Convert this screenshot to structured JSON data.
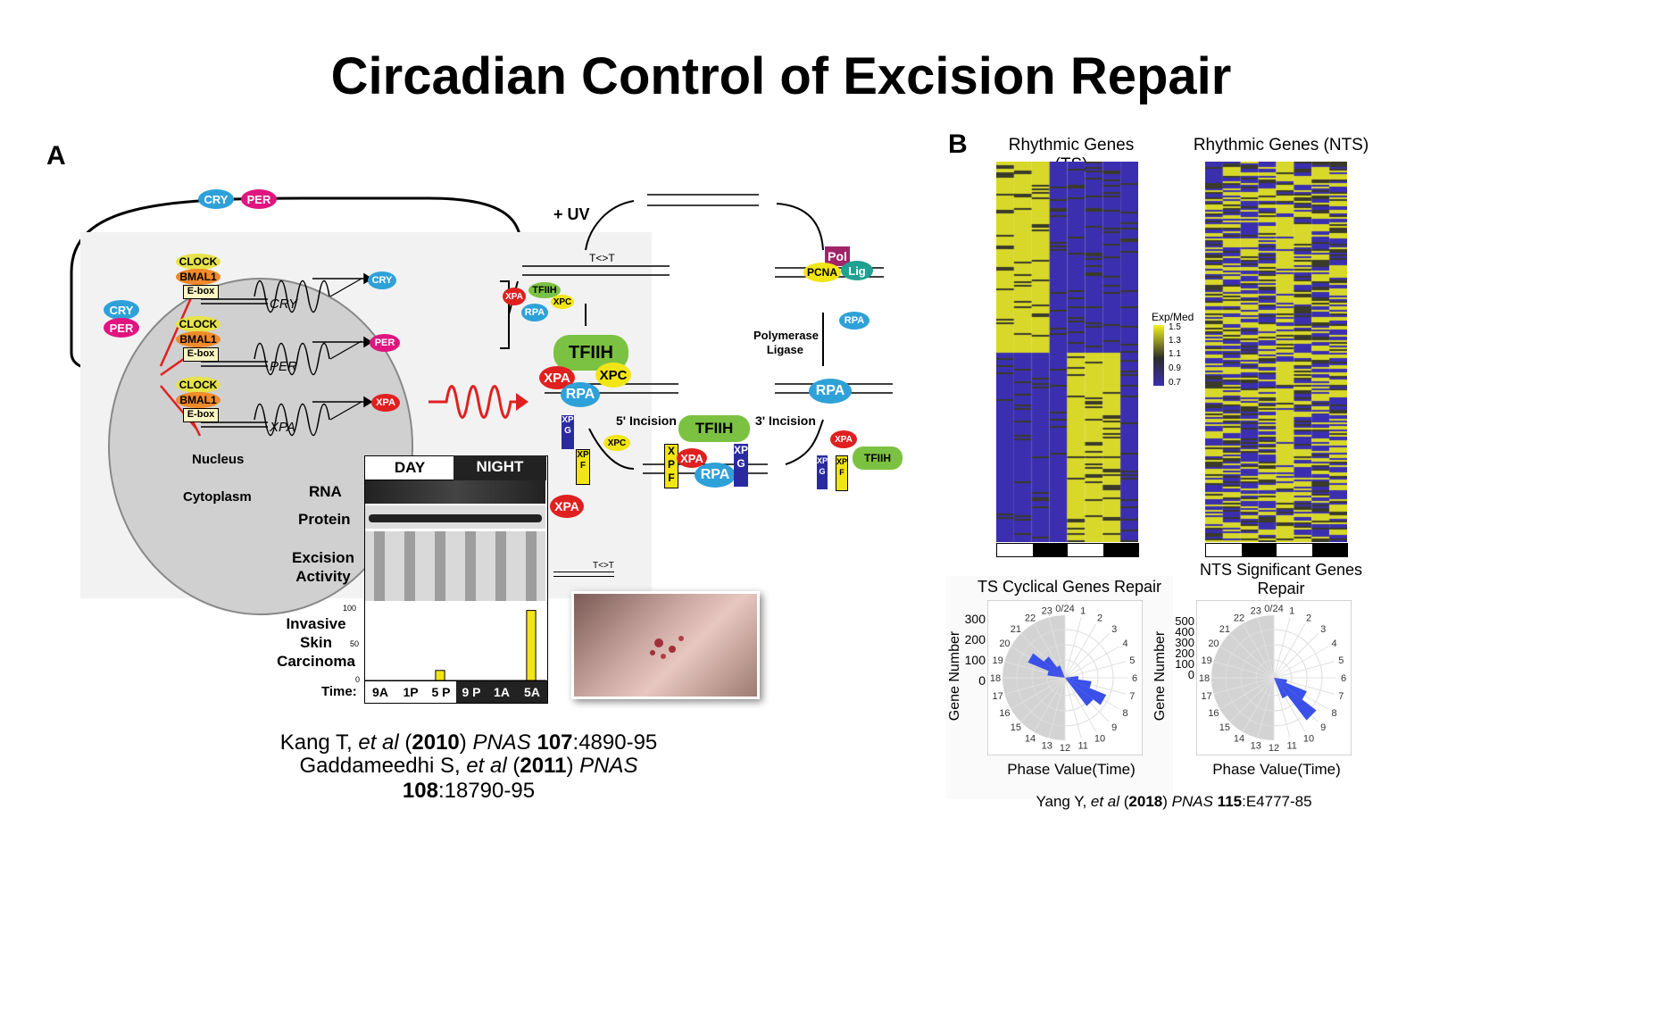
{
  "title": "Circadian Control of Excision Repair",
  "panelA": {
    "letter": "A",
    "clock": {
      "proteins": {
        "cry": "CRY",
        "per": "PER",
        "clock": "CLOCK",
        "bmal1": "BMAL1",
        "ebox": "E-box"
      },
      "genes": [
        "CRY",
        "PER",
        "XPA"
      ],
      "nucleus": "Nucleus",
      "cytoplasm": "Cytoplasm",
      "xpa": "XPA"
    },
    "repair": {
      "uv": "+ UV",
      "lesion": "T<>T",
      "tfiih": "TFIIH",
      "xpc": "XPC",
      "xpa": "XPA",
      "rpa": "RPA",
      "xpg": "XPG",
      "xpf": "XPF",
      "incision5": "5' Incision",
      "incision3": "3' Incision",
      "polymerase": "Polymerase",
      "ligase": "Ligase",
      "pol": "Pol",
      "pcna": "PCNA",
      "lig": "Lig"
    },
    "blot": {
      "day": "DAY",
      "night": "NIGHT",
      "rows": [
        "RNA",
        "Protein",
        "Excision Activity"
      ],
      "xpa_label": "XPA",
      "lesion_label": "T<>T",
      "carcinoma_label": "Invasive Skin Carcinoma",
      "time_label": "Time:",
      "times": [
        "9A",
        "1P",
        "5 P",
        "9 P",
        "1A",
        "5A"
      ],
      "bar_values": [
        0,
        0,
        14,
        0,
        0,
        98
      ],
      "yticks": [
        "100",
        "50",
        "0"
      ]
    },
    "citations": [
      {
        "author": "Kang T, ",
        "etal": "et al",
        "open": " (",
        "year": "2010",
        "close": ") ",
        "journal": "PNAS",
        "sp": " ",
        "vol": "107",
        "pages": ":4890-95"
      },
      {
        "author": "Gaddameedhi S, ",
        "etal": "et al",
        "open": " (",
        "year": "2011",
        "close": ") ",
        "journal": "PNAS",
        "sp": " ",
        "vol": "108",
        "pages": ":18790-95"
      }
    ]
  },
  "panelB": {
    "letter": "B",
    "heatmap_ts_title": "Rhythmic Genes (TS)",
    "heatmap_nts_title": "Rhythmic Genes (NTS)",
    "legend_title": "Exp/Med",
    "legend_values": [
      "1.5",
      "1.3",
      "1.1",
      "0.9",
      "0.7"
    ],
    "polar_ts_title": "TS Cyclical Genes Repair",
    "polar_nts_title": "NTS Significant Genes Repair",
    "polar_ts_yticks": [
      "300",
      "200",
      "100",
      "0"
    ],
    "polar_nts_yticks": [
      "500",
      "400",
      "300",
      "200",
      "100",
      "0"
    ],
    "polar_ylabel": "Gene Number",
    "polar_xlabel": "Phase Value(Time)",
    "hours": [
      "0/24",
      "1",
      "2",
      "3",
      "4",
      "5",
      "6",
      "7",
      "8",
      "9",
      "10",
      "11",
      "12",
      "13",
      "14",
      "15",
      "16",
      "17",
      "18",
      "19",
      "20",
      "21",
      "22",
      "23"
    ],
    "citation": {
      "author": "Yang Y, ",
      "etal": "et al",
      "open": " (",
      "year": "2018",
      "close": ") ",
      "journal": "PNAS",
      "sp": " ",
      "vol": "115",
      "pages": ":E4777-85"
    },
    "colors": {
      "high": "#f2f21f",
      "mid": "#2b2b2b",
      "low": "#3b2fb0",
      "rose": "#3a50e8"
    }
  }
}
